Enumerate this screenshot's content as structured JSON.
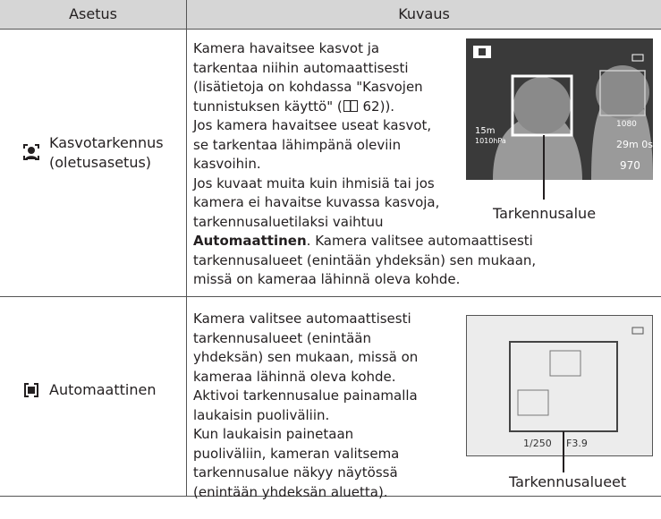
{
  "table": {
    "headers": [
      "Asetus",
      "Kuvaus"
    ],
    "rows": [
      {
        "setting": [
          "Kasvotarkennus",
          "(oletusasetus)"
        ],
        "lines": [
          "Kamera havaitsee kasvot ja",
          "tarkentaa niihin automaattisesti",
          "(lisätietoja on kohdassa \"Kasvojen",
          {
            "before": "tunnistuksen käyttö\" (",
            "after": " 62))."
          },
          "Jos kamera havaitsee useat kasvot,",
          "se tarkentaa lähimpänä oleviin",
          "kasvoihin.",
          "Jos kuvaat muita kuin ihmisiä tai jos",
          "kamera ei havaitse kuvassa kasvoja,",
          "tarkennusaluetilaksi vaihtuu",
          {
            "bold": "Automaattinen",
            "after": ". Kamera valitsee automaattisesti"
          },
          "tarkennusalueet (enintään yhdeksän) sen mukaan,",
          "missä on kameraa lähinnä oleva kohde."
        ],
        "caption": "Tarkennusalue",
        "screen": [
          "15m",
          "1010hPa",
          "1080",
          "29m 0s",
          "970"
        ]
      },
      {
        "setting": [
          "Automaattinen"
        ],
        "lines": [
          "Kamera valitsee automaattisesti",
          "tarkennusalueet (enintään",
          "yhdeksän) sen mukaan, missä on",
          "kameraa lähinnä oleva kohde.",
          "Aktivoi tarkennusalue painamalla",
          "laukaisin puoliväliin.",
          "Kun laukaisin painetaan",
          "puoliväliin, kameran valitsema",
          "tarkennusalue näkyy näytössä",
          "(enintään yhdeksän aluetta)."
        ],
        "caption": "Tarkennusalueet",
        "screen": [
          "1/250",
          "F3.9"
        ]
      }
    ]
  }
}
